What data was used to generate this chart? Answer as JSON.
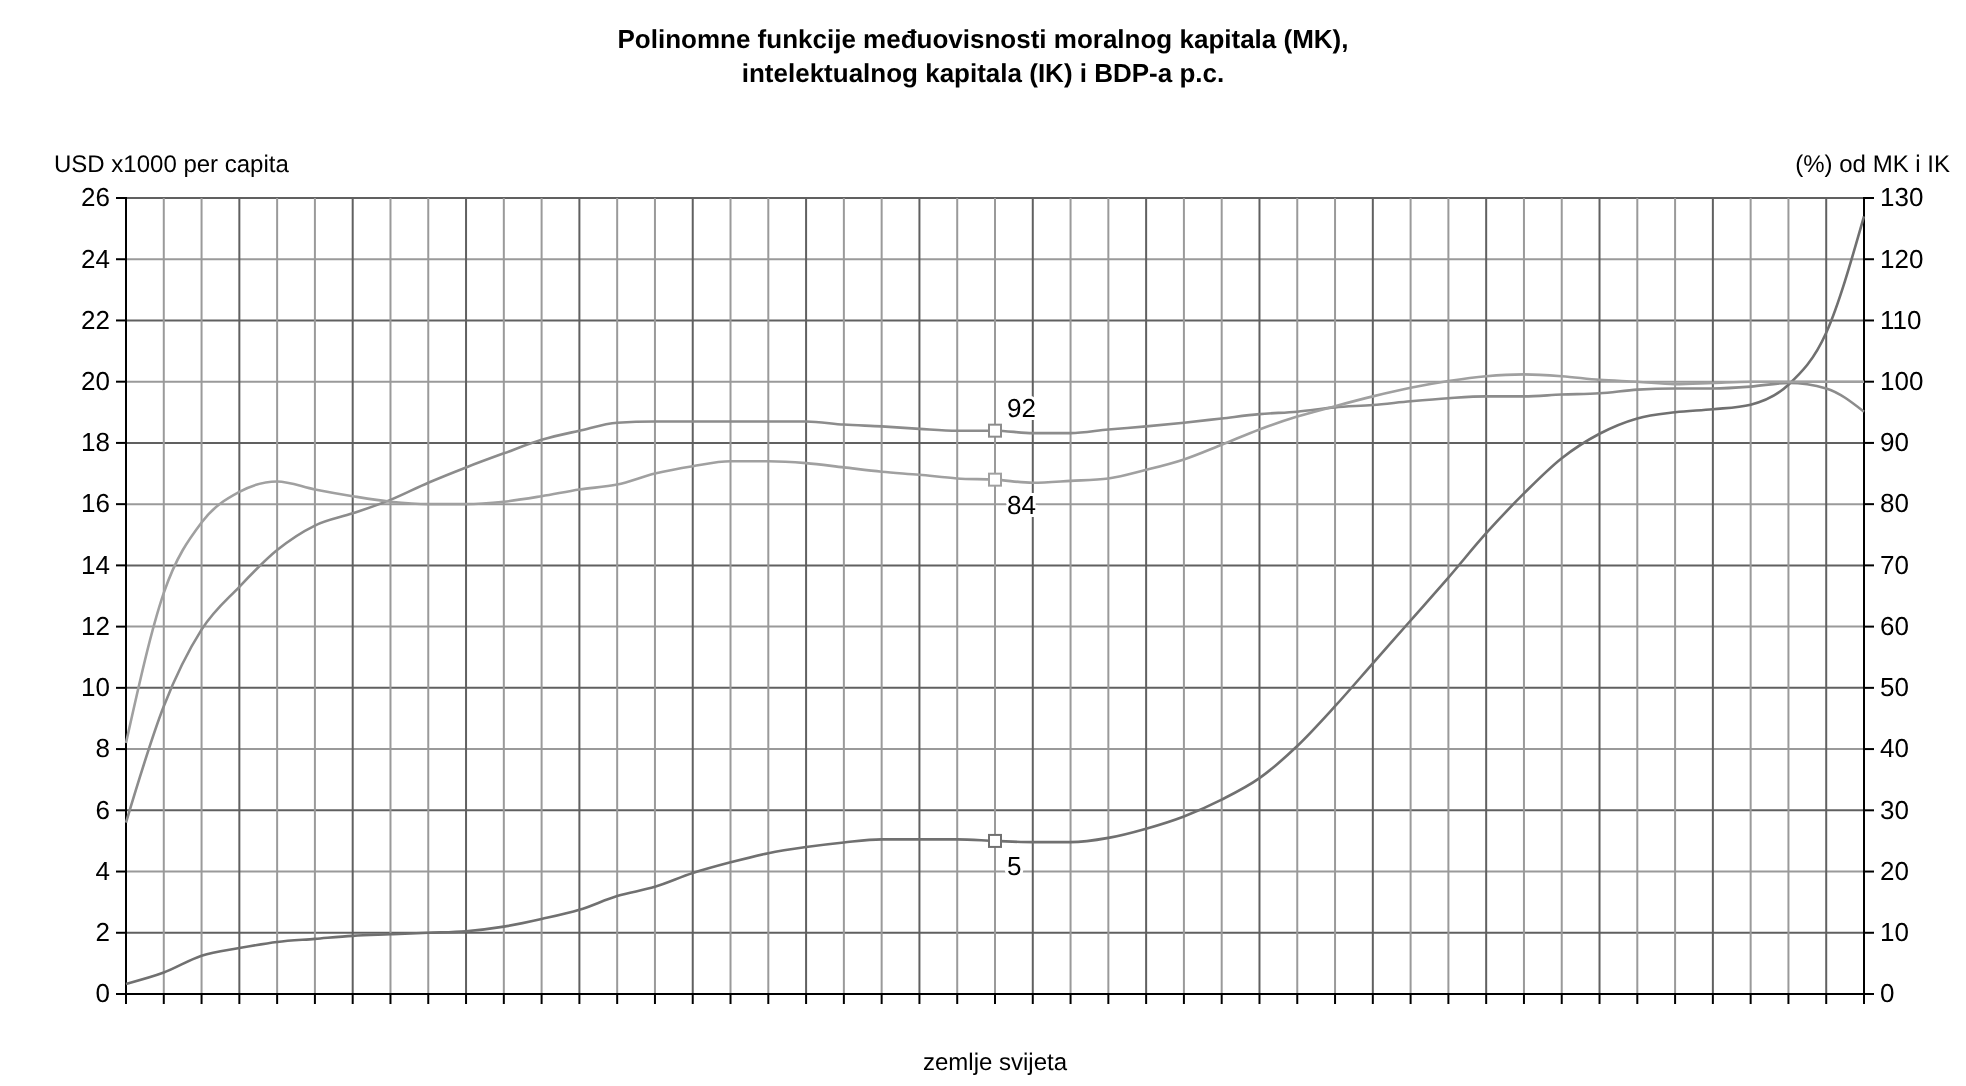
{
  "chart_data": {
    "type": "line",
    "title": "Polinomne funkcije međuovisnosti moralnog kapitala (MK),\nintelektualnog kapitala (IK) i BDP-a p.c.",
    "xlabel": "zemlje svijeta",
    "ylabel": "USD x1000 per capita",
    "y2label": "(%) od MK i IK",
    "categories": [
      null,
      null,
      null,
      null,
      null,
      null,
      null,
      null,
      null,
      null,
      null,
      null,
      null,
      null,
      null,
      null,
      null,
      null,
      null,
      null,
      null,
      null,
      null,
      null,
      null,
      null,
      null,
      null,
      null,
      null,
      null,
      null,
      null,
      null,
      null,
      null,
      null,
      null,
      null,
      null,
      null,
      null,
      null,
      null,
      null,
      null,
      null
    ],
    "series": [
      {
        "color": "#707070",
        "axis": "y",
        "values": [
          0.33,
          0.7,
          1.25,
          1.5,
          1.7,
          1.8,
          1.9,
          1.95,
          2.0,
          2.05,
          2.2,
          2.45,
          2.75,
          3.2,
          3.5,
          3.95,
          4.3,
          4.6,
          4.8,
          4.95,
          5.05,
          5.05,
          5.05,
          5,
          4.96,
          4.96,
          5.1,
          5.4,
          5.8,
          6.35,
          7.05,
          8.1,
          9.4,
          10.8,
          12.2,
          13.6,
          15.05,
          16.35,
          17.5,
          18.3,
          18.8,
          19.0,
          19.1,
          19.25,
          19.9,
          21.6,
          25.4
        ],
        "value_labels": [
          null,
          null,
          null,
          null,
          null,
          null,
          null,
          null,
          null,
          null,
          null,
          null,
          null,
          null,
          null,
          null,
          null,
          null,
          null,
          null,
          null,
          null,
          null,
          "5",
          null,
          null,
          null,
          null,
          null,
          null,
          null,
          null,
          null,
          null,
          null,
          null,
          null,
          null,
          null,
          null,
          null,
          null,
          null,
          null,
          null,
          null,
          null
        ]
      },
      {
        "color": "#8c8c8c",
        "axis": "y2",
        "values": [
          28,
          47,
          59.5,
          66.5,
          72.5,
          76.5,
          78.5,
          80.7,
          83.5,
          86,
          88.3,
          90.5,
          92,
          93.3,
          93.5,
          93.5,
          93.5,
          93.5,
          93.5,
          93,
          92.7,
          92.3,
          92,
          92,
          91.6,
          91.6,
          92.2,
          92.7,
          93.3,
          94,
          94.7,
          95.1,
          95.8,
          96.2,
          96.8,
          97.3,
          97.6,
          97.6,
          97.9,
          98.1,
          98.7,
          98.9,
          98.9,
          99.2,
          99.8,
          98.9,
          95.1
        ],
        "value_labels": [
          null,
          null,
          null,
          null,
          null,
          null,
          null,
          null,
          null,
          null,
          null,
          null,
          null,
          null,
          null,
          null,
          null,
          null,
          null,
          null,
          null,
          null,
          null,
          "92",
          null,
          null,
          null,
          null,
          null,
          null,
          null,
          null,
          null,
          null,
          null,
          null,
          null,
          null,
          null,
          null,
          null,
          null,
          null,
          null,
          null,
          null,
          null
        ]
      },
      {
        "color": "#a0a0a0",
        "axis": "y2",
        "values": [
          41,
          65.5,
          77,
          82,
          83.7,
          82.4,
          81.3,
          80.4,
          80,
          80,
          80.4,
          81.3,
          82.4,
          83.2,
          85,
          86.2,
          87,
          87,
          86.7,
          86,
          85.3,
          84.8,
          84.2,
          84,
          83.5,
          83.8,
          84.2,
          85.6,
          87.3,
          89.7,
          92.2,
          94.3,
          96,
          97.6,
          99,
          100.1,
          100.9,
          101.2,
          100.9,
          100.3,
          100,
          99.6,
          99.8,
          100,
          100,
          100,
          100
        ],
        "value_labels": [
          null,
          null,
          null,
          null,
          null,
          null,
          null,
          null,
          null,
          null,
          null,
          null,
          null,
          null,
          null,
          null,
          null,
          null,
          null,
          null,
          null,
          null,
          null,
          "84",
          null,
          null,
          null,
          null,
          null,
          null,
          null,
          null,
          null,
          null,
          null,
          null,
          null,
          null,
          null,
          null,
          null,
          null,
          null,
          null,
          null,
          null,
          null
        ]
      }
    ],
    "ylim": [
      0,
      26
    ],
    "yticks": [
      0,
      2,
      4,
      6,
      8,
      10,
      12,
      14,
      16,
      18,
      20,
      22,
      24,
      26
    ],
    "y2lim": [
      0,
      130
    ],
    "y2ticks": [
      0,
      10,
      20,
      30,
      40,
      50,
      60,
      70,
      80,
      90,
      100,
      110,
      120,
      130
    ],
    "grid": true,
    "tick_labels": "y"
  }
}
